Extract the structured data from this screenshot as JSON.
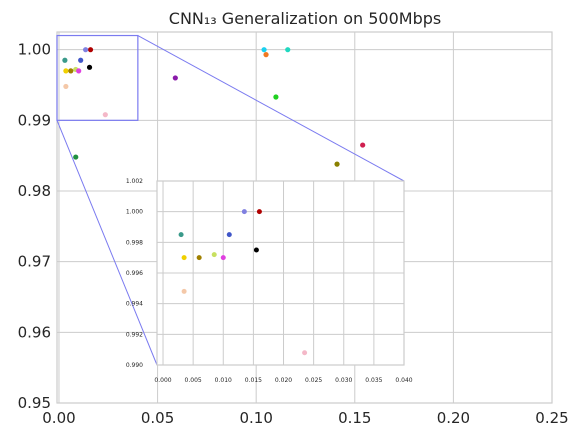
{
  "chart_data": {
    "type": "scatter",
    "title": "CNN₁₃ Generalization on 500Mbps",
    "xlabel": "",
    "ylabel": "",
    "grid": true,
    "main": {
      "xlim": [
        -0.001,
        0.25
      ],
      "ylim": [
        0.95,
        1.0025
      ],
      "xticks": [
        "0.00",
        "0.05",
        "0.10",
        "0.15",
        "0.20",
        "0.25"
      ],
      "xtick_values": [
        0,
        0.05,
        0.1,
        0.15,
        0.2,
        0.25
      ],
      "yticks": [
        "0.95",
        "0.96",
        "0.97",
        "0.98",
        "0.99",
        "1.00"
      ],
      "ytick_values": [
        0.95,
        0.96,
        0.97,
        0.98,
        0.99,
        1.0
      ]
    },
    "inset": {
      "xlim": [
        -0.001,
        0.04
      ],
      "ylim": [
        0.99,
        1.002
      ],
      "xticks": [
        "0.000",
        "0.005",
        "0.010",
        "0.015",
        "0.020",
        "0.025",
        "0.030",
        "0.035",
        "0.040"
      ],
      "xtick_values": [
        0,
        0.005,
        0.01,
        0.015,
        0.02,
        0.025,
        0.03,
        0.035,
        0.04
      ],
      "yticks": [
        "0.990",
        "0.992",
        "0.994",
        "0.996",
        "0.998",
        "1.000",
        "1.002"
      ],
      "ytick_values": [
        0.99,
        0.992,
        0.994,
        0.996,
        0.998,
        1.0,
        1.002
      ]
    },
    "zoom_box_color": "#7b7bf0",
    "points": [
      {
        "x": 0.016,
        "y": 1.0,
        "color": "#b00000"
      },
      {
        "x": 0.0135,
        "y": 1.0,
        "color": "#8080e0"
      },
      {
        "x": 0.003,
        "y": 0.9985,
        "color": "#3a9a8a"
      },
      {
        "x": 0.011,
        "y": 0.9985,
        "color": "#4056c8"
      },
      {
        "x": 0.0155,
        "y": 0.9975,
        "color": "#000000"
      },
      {
        "x": 0.0085,
        "y": 0.9972,
        "color": "#c8e060"
      },
      {
        "x": 0.0035,
        "y": 0.997,
        "color": "#f0d000"
      },
      {
        "x": 0.006,
        "y": 0.997,
        "color": "#a08000"
      },
      {
        "x": 0.01,
        "y": 0.997,
        "color": "#e040e0"
      },
      {
        "x": 0.0035,
        "y": 0.9948,
        "color": "#f4c8a8"
      },
      {
        "x": 0.0235,
        "y": 0.9908,
        "color": "#f4b8c8"
      },
      {
        "x": 0.059,
        "y": 0.996,
        "color": "#8a1aaa"
      },
      {
        "x": 0.104,
        "y": 1.0,
        "color": "#1ad0f0"
      },
      {
        "x": 0.116,
        "y": 1.0,
        "color": "#20d8c0"
      },
      {
        "x": 0.105,
        "y": 0.9993,
        "color": "#f07820"
      },
      {
        "x": 0.11,
        "y": 0.9933,
        "color": "#20d020"
      },
      {
        "x": 0.154,
        "y": 0.9865,
        "color": "#d02050"
      },
      {
        "x": 0.141,
        "y": 0.9838,
        "color": "#8a8000"
      },
      {
        "x": 0.0085,
        "y": 0.9848,
        "color": "#209040"
      }
    ]
  }
}
